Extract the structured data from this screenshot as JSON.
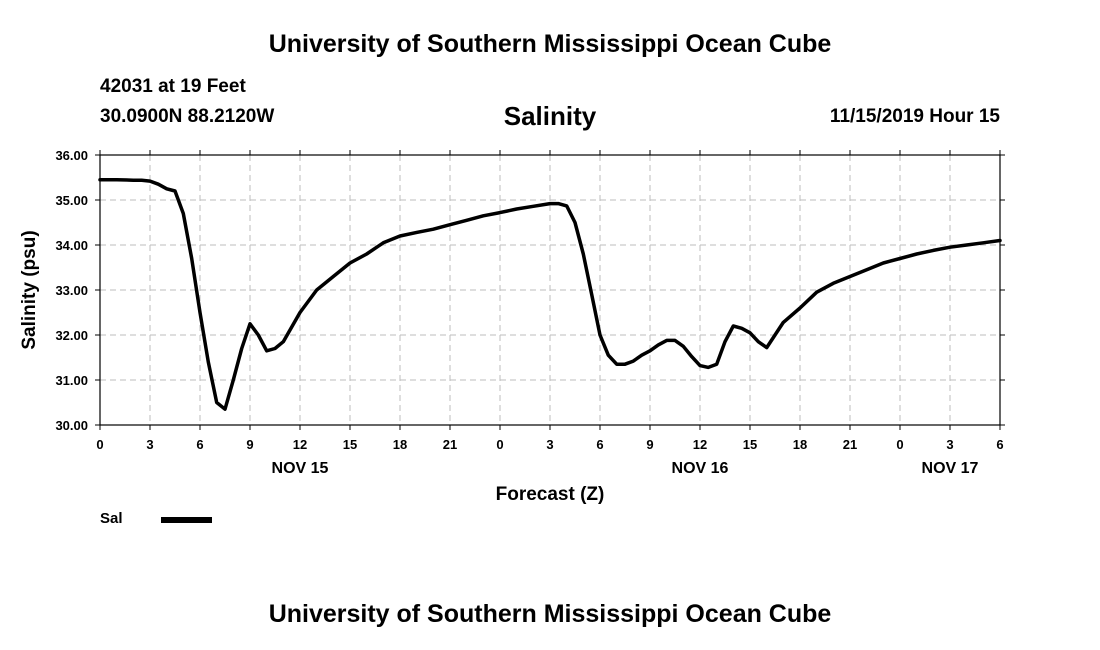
{
  "header": {
    "title": "University of Southern Mississippi Ocean Cube",
    "station": "42031 at 19 Feet",
    "coordinates": "30.0900N 88.2120W",
    "datetime": "11/15/2019 Hour 15"
  },
  "footer": {
    "title": "University of Southern Mississippi Ocean Cube"
  },
  "legend": {
    "label": "Sal",
    "color": "#000000"
  },
  "chart_data": {
    "type": "line",
    "title": "Salinity",
    "xlabel": "Forecast (Z)",
    "ylabel": "Salinity (psu)",
    "ylim": [
      30.0,
      36.0
    ],
    "xlim": [
      0,
      54
    ],
    "x_unit": "hours since NOV 15 00Z",
    "y_ticks": [
      "30.00",
      "31.00",
      "32.00",
      "33.00",
      "34.00",
      "35.00",
      "36.00"
    ],
    "x_ticks": [
      {
        "x": 0,
        "label": "0"
      },
      {
        "x": 3,
        "label": "3"
      },
      {
        "x": 6,
        "label": "6"
      },
      {
        "x": 9,
        "label": "9"
      },
      {
        "x": 12,
        "label": "12"
      },
      {
        "x": 15,
        "label": "15"
      },
      {
        "x": 18,
        "label": "18"
      },
      {
        "x": 21,
        "label": "21"
      },
      {
        "x": 24,
        "label": "0"
      },
      {
        "x": 27,
        "label": "3"
      },
      {
        "x": 30,
        "label": "6"
      },
      {
        "x": 33,
        "label": "9"
      },
      {
        "x": 36,
        "label": "12"
      },
      {
        "x": 39,
        "label": "15"
      },
      {
        "x": 42,
        "label": "18"
      },
      {
        "x": 45,
        "label": "21"
      },
      {
        "x": 48,
        "label": "0"
      },
      {
        "x": 51,
        "label": "3"
      },
      {
        "x": 54,
        "label": "6"
      }
    ],
    "day_labels": [
      {
        "x": 12,
        "label": "NOV 15"
      },
      {
        "x": 36,
        "label": "NOV 16"
      },
      {
        "x": 51,
        "label": "NOV 17"
      }
    ],
    "grid": true,
    "series": [
      {
        "name": "Sal",
        "color": "#000000",
        "x": [
          0,
          1,
          2,
          2.5,
          3,
          3.5,
          4,
          4.5,
          5,
          5.5,
          6,
          6.5,
          7,
          7.5,
          8,
          8.5,
          9,
          9.5,
          10,
          10.5,
          11,
          12,
          13,
          14,
          15,
          16,
          17,
          18,
          19,
          20,
          21,
          22,
          23,
          24,
          25,
          26,
          27,
          27.5,
          28,
          28.5,
          29,
          29.5,
          30,
          30.5,
          31,
          31.5,
          32,
          32.5,
          33,
          33.5,
          34,
          34.5,
          35,
          35.5,
          36,
          36.5,
          37,
          37.5,
          38,
          38.5,
          39,
          39.5,
          40,
          40.5,
          41,
          42,
          43,
          44,
          45,
          46,
          47,
          48,
          49,
          50,
          51,
          52,
          53,
          54
        ],
        "values": [
          35.45,
          35.45,
          35.44,
          35.44,
          35.42,
          35.35,
          35.25,
          35.2,
          34.7,
          33.7,
          32.5,
          31.4,
          30.5,
          30.35,
          31.0,
          31.7,
          32.25,
          32.0,
          31.65,
          31.7,
          31.85,
          32.5,
          33.0,
          33.3,
          33.6,
          33.8,
          34.05,
          34.2,
          34.28,
          34.35,
          34.45,
          34.55,
          34.65,
          34.72,
          34.8,
          34.86,
          34.92,
          34.92,
          34.87,
          34.5,
          33.8,
          32.9,
          32.0,
          31.55,
          31.35,
          31.35,
          31.42,
          31.55,
          31.65,
          31.78,
          31.88,
          31.88,
          31.75,
          31.52,
          31.32,
          31.28,
          31.35,
          31.85,
          32.2,
          32.15,
          32.05,
          31.85,
          31.72,
          32.0,
          32.28,
          32.6,
          32.95,
          33.15,
          33.3,
          33.45,
          33.6,
          33.7,
          33.8,
          33.88,
          33.95,
          34.0,
          34.05,
          34.1
        ]
      }
    ]
  }
}
